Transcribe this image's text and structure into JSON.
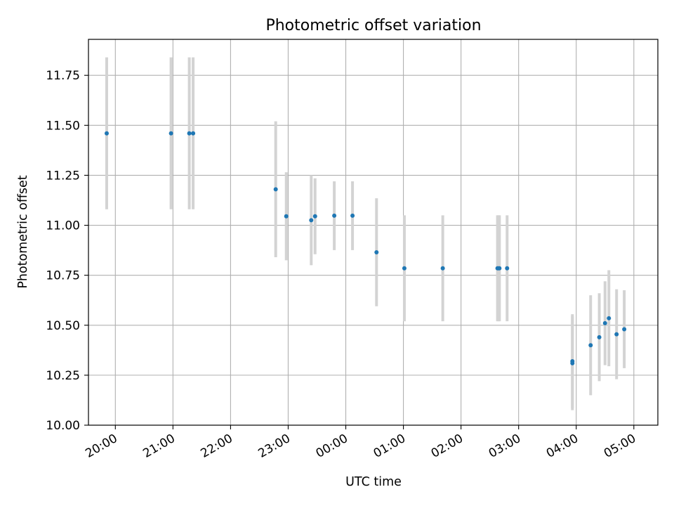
{
  "chart_data": {
    "type": "scatter",
    "title": "Photometric offset variation",
    "xlabel": "UTC time",
    "ylabel": "Photometric offset",
    "grid": true,
    "x_tick_labels": [
      "20:00",
      "21:00",
      "22:00",
      "23:00",
      "00:00",
      "01:00",
      "02:00",
      "03:00",
      "04:00",
      "05:00"
    ],
    "x_ticks": [
      "20:00",
      "21:00",
      "22:00",
      "23:00",
      "00:00",
      "01:00",
      "02:00",
      "03:00",
      "04:00",
      "05:00"
    ],
    "xlim": [
      "19:32",
      "05:25"
    ],
    "y_ticks": [
      10.0,
      10.25,
      10.5,
      10.75,
      11.0,
      11.25,
      11.5,
      11.75
    ],
    "y_tick_labels": [
      "10.00",
      "10.25",
      "10.50",
      "10.75",
      "11.00",
      "11.25",
      "11.50",
      "11.75"
    ],
    "ylim": [
      10.0,
      11.93
    ],
    "series": [
      {
        "marker_color": "#1f77b4",
        "error_color": "#d3d3d3",
        "points": [
          {
            "x": "19:51",
            "y": 11.46,
            "err": 0.38
          },
          {
            "x": "20:58",
            "y": 11.46,
            "err": 0.38
          },
          {
            "x": "21:17",
            "y": 11.46,
            "err": 0.38
          },
          {
            "x": "21:21",
            "y": 11.46,
            "err": 0.38
          },
          {
            "x": "22:47",
            "y": 11.18,
            "err": 0.34
          },
          {
            "x": "22:58",
            "y": 11.045,
            "err": 0.22
          },
          {
            "x": "23:24",
            "y": 11.025,
            "err": 0.225
          },
          {
            "x": "23:28",
            "y": 11.045,
            "err": 0.19
          },
          {
            "x": "23:48",
            "y": 11.048,
            "err": 0.172
          },
          {
            "x": "00:07",
            "y": 11.048,
            "err": 0.172
          },
          {
            "x": "00:32",
            "y": 10.865,
            "err": 0.27
          },
          {
            "x": "01:01",
            "y": 10.785,
            "err": 0.265
          },
          {
            "x": "01:41",
            "y": 10.785,
            "err": 0.265
          },
          {
            "x": "02:38",
            "y": 10.785,
            "err": 0.265
          },
          {
            "x": "02:39",
            "y": 10.785,
            "err": 0.265
          },
          {
            "x": "02:40",
            "y": 10.785,
            "err": 0.265
          },
          {
            "x": "02:48",
            "y": 10.785,
            "err": 0.265
          },
          {
            "x": "03:56",
            "y": 10.32,
            "err": 0.235
          },
          {
            "x": "03:56",
            "y": 10.31,
            "err": 0.235
          },
          {
            "x": "04:15",
            "y": 10.4,
            "err": 0.25
          },
          {
            "x": "04:24",
            "y": 10.44,
            "err": 0.22
          },
          {
            "x": "04:30",
            "y": 10.51,
            "err": 0.21
          },
          {
            "x": "04:34",
            "y": 10.535,
            "err": 0.24
          },
          {
            "x": "04:42",
            "y": 10.455,
            "err": 0.225
          },
          {
            "x": "04:50",
            "y": 10.48,
            "err": 0.195
          }
        ]
      }
    ]
  }
}
